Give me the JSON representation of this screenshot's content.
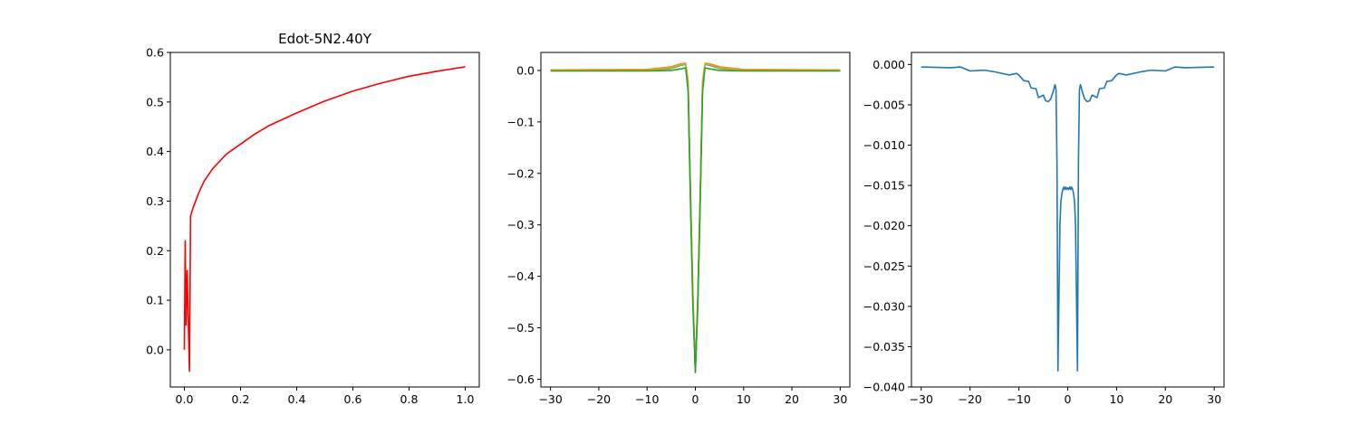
{
  "chart_data": [
    {
      "type": "line",
      "title": "Edot-5N2.40Y",
      "xlim": [
        -0.05,
        1.05
      ],
      "ylim": [
        -0.075,
        0.6
      ],
      "xticks": [
        0.0,
        0.2,
        0.4,
        0.6,
        0.8,
        1.0
      ],
      "xtick_labels": [
        "0.0",
        "0.2",
        "0.4",
        "0.6",
        "0.8",
        "1.0"
      ],
      "yticks": [
        0.0,
        0.1,
        0.2,
        0.3,
        0.4,
        0.5,
        0.6
      ],
      "ytick_labels": [
        "0.0",
        "0.1",
        "0.2",
        "0.3",
        "0.4",
        "0.5",
        "0.6"
      ],
      "series": [
        {
          "color": "#ff0000",
          "x": [
            0.0,
            0.003,
            0.006,
            0.01,
            0.015,
            0.018,
            0.02,
            0.022,
            0.025,
            0.03,
            0.04,
            0.05,
            0.07,
            0.1,
            0.15,
            0.2,
            0.25,
            0.3,
            0.4,
            0.5,
            0.6,
            0.7,
            0.8,
            0.9,
            1.0
          ],
          "y": [
            0.0,
            0.22,
            0.05,
            0.16,
            0.03,
            -0.043,
            0.1,
            0.27,
            0.275,
            0.285,
            0.3,
            0.315,
            0.34,
            0.365,
            0.395,
            0.415,
            0.435,
            0.452,
            0.478,
            0.502,
            0.522,
            0.538,
            0.552,
            0.562,
            0.571
          ]
        }
      ]
    },
    {
      "type": "line",
      "title": "",
      "xlim": [
        -32,
        32
      ],
      "ylim": [
        -0.615,
        0.035
      ],
      "xticks": [
        -30,
        -20,
        -10,
        0,
        10,
        20,
        30
      ],
      "xtick_labels": [
        "−30",
        "−20",
        "−10",
        "0",
        "10",
        "20",
        "30"
      ],
      "yticks": [
        0.0,
        -0.1,
        -0.2,
        -0.3,
        -0.4,
        -0.5,
        -0.6
      ],
      "ytick_labels": [
        "0.0",
        "−0.1",
        "−0.2",
        "−0.3",
        "−0.4",
        "−0.5",
        "−0.6"
      ],
      "series": [
        {
          "color": "#1f77b4",
          "x": [
            -30,
            -10,
            -5,
            -3,
            -2,
            -1.5,
            -1,
            -0.5,
            0,
            0.5,
            1,
            1.5,
            2,
            3,
            5,
            10,
            30
          ],
          "y": [
            0.0,
            0.0,
            0.004,
            0.01,
            0.012,
            -0.03,
            -0.25,
            -0.45,
            -0.585,
            -0.45,
            -0.25,
            -0.03,
            0.012,
            0.01,
            0.004,
            0.0,
            0.0
          ]
        },
        {
          "color": "#ff7f0e",
          "x": [
            -30,
            -10,
            -5,
            -3,
            -2,
            -1.5,
            -1,
            -0.5,
            0,
            0.5,
            1,
            1.5,
            2,
            3,
            5,
            10,
            30
          ],
          "y": [
            0.001,
            0.002,
            0.007,
            0.013,
            0.014,
            -0.02,
            -0.24,
            -0.44,
            -0.582,
            -0.44,
            -0.24,
            -0.02,
            0.014,
            0.013,
            0.007,
            0.002,
            0.001
          ]
        },
        {
          "color": "#bcbd22",
          "x": [
            -30,
            -10,
            -5,
            -3,
            -2,
            -1.5,
            -1,
            -0.5,
            0,
            0.5,
            1,
            1.5,
            2,
            3,
            5,
            10,
            30
          ],
          "y": [
            0.0,
            0.0,
            0.005,
            0.011,
            0.013,
            -0.025,
            -0.245,
            -0.445,
            -0.584,
            -0.445,
            -0.245,
            -0.025,
            0.013,
            0.011,
            0.005,
            0.0,
            0.0
          ]
        },
        {
          "color": "#2ca02c",
          "x": [
            -30,
            -10,
            -5,
            -3,
            -2,
            -1.5,
            -1,
            -0.5,
            0,
            0.5,
            1,
            1.5,
            2,
            3,
            5,
            10,
            30
          ],
          "y": [
            -0.001,
            -0.001,
            0.0,
            0.003,
            0.005,
            -0.04,
            -0.26,
            -0.46,
            -0.587,
            -0.46,
            -0.26,
            -0.04,
            0.005,
            0.003,
            0.0,
            -0.001,
            -0.001
          ]
        }
      ]
    },
    {
      "type": "line",
      "title": "",
      "xlim": [
        -32,
        32
      ],
      "ylim": [
        -0.04,
        0.0015
      ],
      "xticks": [
        -30,
        -20,
        -10,
        0,
        10,
        20,
        30
      ],
      "xtick_labels": [
        "−30",
        "−20",
        "−10",
        "0",
        "10",
        "20",
        "30"
      ],
      "yticks": [
        0.0,
        -0.005,
        -0.01,
        -0.015,
        -0.02,
        -0.025,
        -0.03,
        -0.035,
        -0.04
      ],
      "ytick_labels": [
        "0.000",
        "−0.005",
        "−0.010",
        "−0.015",
        "−0.020",
        "−0.025",
        "−0.030",
        "−0.035",
        "−0.040"
      ],
      "series": [
        {
          "color": "#1f77b4",
          "x": [
            -30,
            -24,
            -22,
            -20,
            -17,
            -15,
            -12,
            -10.5,
            -10,
            -9,
            -8,
            -7.5,
            -6.5,
            -6,
            -5,
            -4.5,
            -4,
            -3.5,
            -3,
            -2.6,
            -2.4,
            -2.2,
            -2.0,
            -1.8,
            -1.6,
            -1.4,
            -1.2,
            -1.0,
            -0.8,
            -0.6,
            -0.4,
            -0.2,
            0.0,
            0.2,
            0.4,
            0.6,
            0.8,
            1.0,
            1.2,
            1.4,
            1.6,
            1.8,
            2.0,
            2.2,
            2.4,
            2.6,
            3,
            3.5,
            4,
            4.5,
            5,
            6,
            6.5,
            7.5,
            8,
            9,
            10,
            10.5,
            12,
            15,
            17,
            20,
            22,
            24,
            30
          ],
          "y": [
            -0.0003,
            -0.0004,
            -0.0003,
            -0.0008,
            -0.0007,
            -0.0009,
            -0.0013,
            -0.0011,
            -0.0013,
            -0.002,
            -0.0021,
            -0.0029,
            -0.003,
            -0.0041,
            -0.0038,
            -0.0045,
            -0.0046,
            -0.0043,
            -0.0034,
            -0.0025,
            -0.0031,
            -0.012,
            -0.038,
            -0.029,
            -0.02,
            -0.017,
            -0.016,
            -0.0155,
            -0.0152,
            -0.0155,
            -0.0152,
            -0.0155,
            -0.0153,
            -0.0155,
            -0.0152,
            -0.0155,
            -0.0152,
            -0.0155,
            -0.016,
            -0.017,
            -0.02,
            -0.029,
            -0.038,
            -0.012,
            -0.0031,
            -0.0025,
            -0.0034,
            -0.0043,
            -0.0046,
            -0.0045,
            -0.0038,
            -0.0041,
            -0.003,
            -0.0029,
            -0.0021,
            -0.002,
            -0.0013,
            -0.0011,
            -0.0013,
            -0.0009,
            -0.0007,
            -0.0008,
            -0.0003,
            -0.0004,
            -0.0003
          ]
        }
      ]
    }
  ]
}
